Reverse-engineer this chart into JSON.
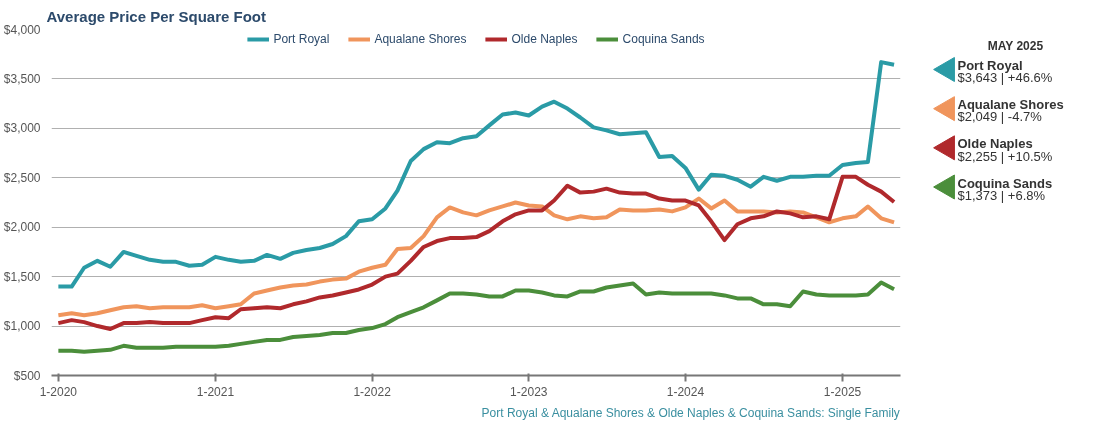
{
  "chart_data": {
    "type": "line",
    "title": "Average Price Per Square Foot",
    "x": [
      "2020-01",
      "2020-02",
      "2020-03",
      "2020-04",
      "2020-05",
      "2020-06",
      "2020-07",
      "2020-08",
      "2020-09",
      "2020-10",
      "2020-11",
      "2020-12",
      "2021-01",
      "2021-02",
      "2021-03",
      "2021-04",
      "2021-05",
      "2021-06",
      "2021-07",
      "2021-08",
      "2021-09",
      "2021-10",
      "2021-11",
      "2021-12",
      "2022-01",
      "2022-02",
      "2022-03",
      "2022-04",
      "2022-05",
      "2022-06",
      "2022-07",
      "2022-08",
      "2022-09",
      "2022-10",
      "2022-11",
      "2022-12",
      "2023-01",
      "2023-02",
      "2023-03",
      "2023-04",
      "2023-05",
      "2023-06",
      "2023-07",
      "2023-08",
      "2023-09",
      "2023-10",
      "2023-11",
      "2023-12",
      "2024-01",
      "2024-02",
      "2024-03",
      "2024-04",
      "2024-05",
      "2024-06",
      "2024-07",
      "2024-08",
      "2024-09",
      "2024-10",
      "2024-11",
      "2024-12",
      "2025-01",
      "2025-02",
      "2025-03",
      "2025-04",
      "2025-05"
    ],
    "series": [
      {
        "name": "Port Royal",
        "color": "#2a9ba6",
        "values": [
          1400,
          1400,
          1590,
          1660,
          1600,
          1750,
          1710,
          1670,
          1650,
          1650,
          1610,
          1620,
          1700,
          1670,
          1650,
          1660,
          1720,
          1680,
          1740,
          1770,
          1790,
          1830,
          1910,
          2060,
          2080,
          2190,
          2370,
          2670,
          2790,
          2860,
          2850,
          2900,
          2920,
          3030,
          3140,
          3160,
          3130,
          3220,
          3270,
          3200,
          3110,
          3010,
          2980,
          2940,
          2950,
          2960,
          2710,
          2720,
          2600,
          2380,
          2530,
          2520,
          2480,
          2410,
          2510,
          2470,
          2510,
          2510,
          2520,
          2520,
          2630,
          2650,
          2660,
          3670,
          3643
        ]
      },
      {
        "name": "Aqualane Shores",
        "color": "#f0955c",
        "values": [
          1110,
          1130,
          1110,
          1130,
          1160,
          1190,
          1200,
          1180,
          1190,
          1190,
          1190,
          1210,
          1180,
          1200,
          1220,
          1330,
          1360,
          1390,
          1410,
          1420,
          1450,
          1470,
          1480,
          1550,
          1590,
          1620,
          1780,
          1790,
          1910,
          2100,
          2200,
          2150,
          2120,
          2170,
          2210,
          2250,
          2220,
          2210,
          2120,
          2080,
          2110,
          2090,
          2100,
          2180,
          2170,
          2170,
          2180,
          2160,
          2200,
          2290,
          2190,
          2270,
          2160,
          2160,
          2160,
          2150,
          2160,
          2150,
          2100,
          2050,
          2090,
          2110,
          2210,
          2090,
          2049
        ]
      },
      {
        "name": "Olde Naples",
        "color": "#b0292c",
        "values": [
          1030,
          1060,
          1040,
          1000,
          970,
          1030,
          1030,
          1040,
          1030,
          1030,
          1030,
          1060,
          1090,
          1080,
          1170,
          1180,
          1190,
          1180,
          1220,
          1250,
          1290,
          1310,
          1340,
          1370,
          1420,
          1500,
          1530,
          1660,
          1800,
          1860,
          1890,
          1890,
          1900,
          1960,
          2060,
          2130,
          2170,
          2170,
          2270,
          2420,
          2350,
          2360,
          2390,
          2350,
          2340,
          2340,
          2290,
          2270,
          2270,
          2220,
          2060,
          1870,
          2030,
          2090,
          2110,
          2160,
          2140,
          2100,
          2110,
          2080,
          2510,
          2510,
          2430,
          2360,
          2255
        ]
      },
      {
        "name": "Coquina Sands",
        "color": "#4b8e3b",
        "values": [
          750,
          750,
          740,
          750,
          760,
          800,
          780,
          780,
          780,
          790,
          790,
          790,
          790,
          800,
          820,
          840,
          860,
          860,
          890,
          900,
          910,
          930,
          930,
          960,
          980,
          1020,
          1090,
          1140,
          1190,
          1260,
          1330,
          1330,
          1320,
          1300,
          1300,
          1360,
          1360,
          1340,
          1310,
          1300,
          1350,
          1350,
          1390,
          1410,
          1430,
          1320,
          1340,
          1330,
          1330,
          1330,
          1330,
          1310,
          1280,
          1280,
          1220,
          1220,
          1200,
          1350,
          1320,
          1310,
          1310,
          1310,
          1320,
          1440,
          1373
        ]
      }
    ],
    "xlim": [
      "2019-12-16",
      "2025-05-16"
    ],
    "xticks": [
      {
        "value": "2020-01",
        "label": "1-2020"
      },
      {
        "value": "2021-01",
        "label": "1-2021"
      },
      {
        "value": "2022-01",
        "label": "1-2022"
      },
      {
        "value": "2023-01",
        "label": "1-2023"
      },
      {
        "value": "2024-01",
        "label": "1-2024"
      },
      {
        "value": "2025-01",
        "label": "1-2025"
      }
    ],
    "ylim": [
      500,
      4000
    ],
    "yticks": [
      {
        "value": 500,
        "label": "$500"
      },
      {
        "value": 1000,
        "label": "$1,000"
      },
      {
        "value": 1500,
        "label": "$1,500"
      },
      {
        "value": 2000,
        "label": "$2,000"
      },
      {
        "value": 2500,
        "label": "$2,500"
      },
      {
        "value": 3000,
        "label": "$3,000"
      },
      {
        "value": 3500,
        "label": "$3,500"
      },
      {
        "value": 4000,
        "label": "$4,000"
      }
    ],
    "grid": "y",
    "legend": "top",
    "marker": "none",
    "line_style": "solid",
    "annotations": [
      "Port Royal & Aqualane Shores & Olde Naples & Coquina Sands: Single Family",
      "MAY 2025",
      "$3,643 | +46.6%",
      "$2,049 | -4.7%",
      "$2,255 | +10.5%",
      "$1,373 | +6.8%"
    ]
  }
}
